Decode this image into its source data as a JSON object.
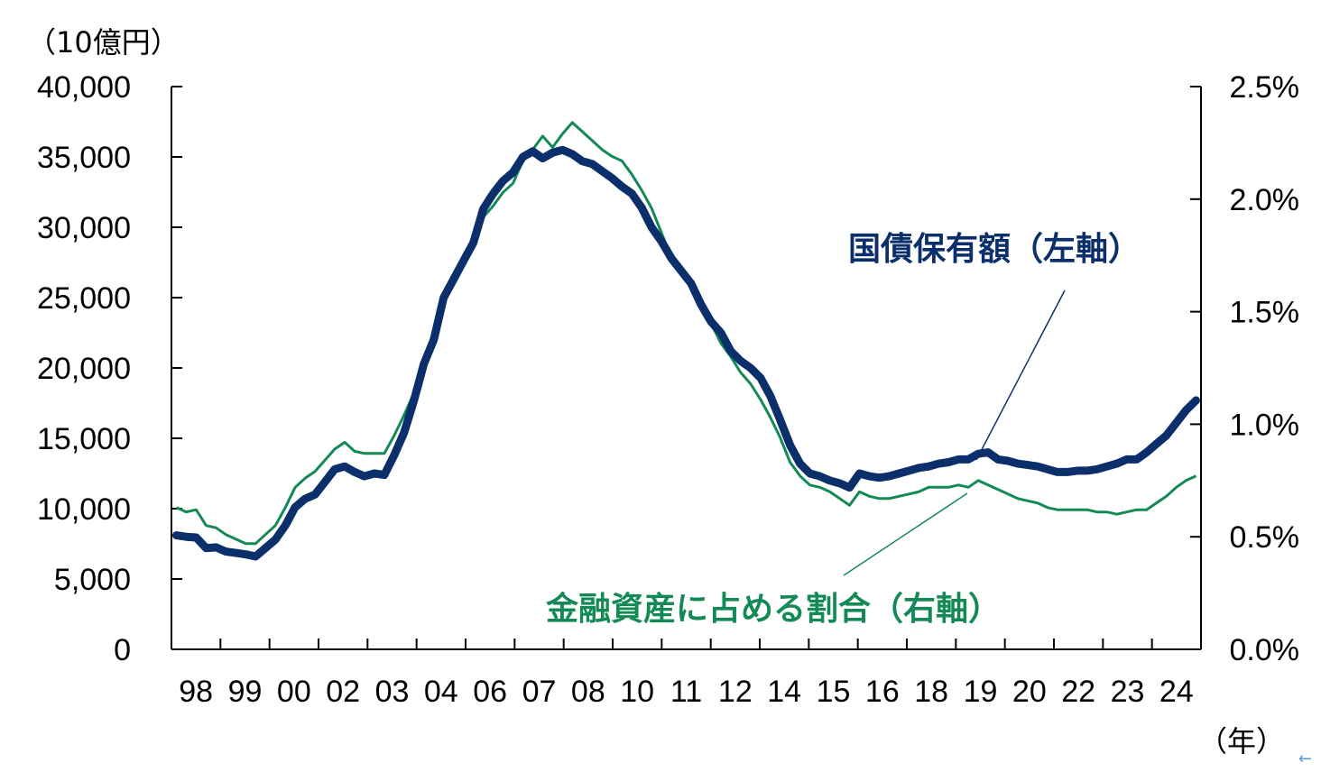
{
  "chart_data": {
    "type": "line",
    "left_axis": {
      "unit_label": "（10億円）",
      "ylim": [
        0,
        40000
      ],
      "ticks": [
        0,
        5000,
        10000,
        15000,
        20000,
        25000,
        30000,
        35000,
        40000
      ],
      "tick_labels": [
        "0",
        "5,000",
        "10,000",
        "15,000",
        "20,000",
        "25,000",
        "30,000",
        "35,000",
        "40,000"
      ]
    },
    "right_axis": {
      "ylim": [
        0,
        2.5
      ],
      "ticks": [
        0,
        0.5,
        1.0,
        1.5,
        2.0,
        2.5
      ],
      "tick_labels": [
        "0.0%",
        "0.5%",
        "1.0%",
        "1.5%",
        "2.0%",
        "2.5%"
      ]
    },
    "x_axis": {
      "unit_label": "（年）",
      "categories": [
        "98",
        "99",
        "00",
        "02",
        "03",
        "04",
        "06",
        "07",
        "08",
        "10",
        "11",
        "12",
        "14",
        "15",
        "16",
        "18",
        "19",
        "20",
        "22",
        "23",
        "24"
      ]
    },
    "grid": false,
    "series": [
      {
        "name": "国債保有額（左軸）",
        "axis": "left",
        "color": "#0b2f6b",
        "values": [
          8100,
          8000,
          7950,
          7200,
          7250,
          6950,
          6850,
          6750,
          6600,
          7200,
          7800,
          8800,
          10100,
          10700,
          11000,
          11900,
          12800,
          13000,
          12600,
          12300,
          12500,
          12400,
          13800,
          15400,
          17700,
          20300,
          22000,
          25000,
          26300,
          27600,
          28900,
          31300,
          32400,
          33300,
          33900,
          35000,
          35400,
          34900,
          35300,
          35500,
          35200,
          34700,
          34500,
          34000,
          33500,
          32900,
          32400,
          31400,
          30000,
          29000,
          27800,
          26900,
          26000,
          24500,
          23300,
          22500,
          21200,
          20500,
          20000,
          19300,
          18000,
          16300,
          14500,
          13200,
          12500,
          12300,
          12000,
          11800,
          11500,
          12500,
          12300,
          12200,
          12300,
          12500,
          12700,
          12900,
          13000,
          13200,
          13300,
          13500,
          13500,
          13900,
          14000,
          13500,
          13400,
          13200,
          13100,
          13000,
          12800,
          12600,
          12600,
          12700,
          12700,
          12800,
          13000,
          13200,
          13500,
          13500,
          14000,
          14600,
          15200,
          16100,
          17000,
          17700
        ]
      },
      {
        "name": "金融資産に占める割合（右軸）",
        "axis": "right",
        "color": "#138a55",
        "values": [
          0.63,
          0.61,
          0.62,
          0.55,
          0.54,
          0.51,
          0.49,
          0.47,
          0.47,
          0.51,
          0.55,
          0.63,
          0.72,
          0.76,
          0.79,
          0.84,
          0.89,
          0.92,
          0.88,
          0.87,
          0.87,
          0.87,
          0.95,
          1.04,
          1.14,
          1.23,
          1.38,
          1.54,
          1.63,
          1.71,
          1.79,
          1.92,
          1.97,
          2.03,
          2.07,
          2.17,
          2.22,
          2.28,
          2.23,
          2.29,
          2.34,
          2.3,
          2.26,
          2.22,
          2.19,
          2.17,
          2.11,
          2.04,
          1.96,
          1.85,
          1.74,
          1.7,
          1.62,
          1.53,
          1.45,
          1.36,
          1.3,
          1.23,
          1.18,
          1.11,
          1.03,
          0.94,
          0.83,
          0.77,
          0.73,
          0.72,
          0.7,
          0.67,
          0.64,
          0.7,
          0.68,
          0.67,
          0.67,
          0.68,
          0.69,
          0.7,
          0.72,
          0.72,
          0.72,
          0.73,
          0.72,
          0.75,
          0.73,
          0.71,
          0.69,
          0.67,
          0.66,
          0.65,
          0.63,
          0.62,
          0.62,
          0.62,
          0.62,
          0.61,
          0.61,
          0.6,
          0.61,
          0.62,
          0.62,
          0.65,
          0.68,
          0.72,
          0.75,
          0.77
        ]
      }
    ],
    "annotations": [
      {
        "target": "国債保有額（左軸）",
        "text": "国債保有額（左軸）"
      },
      {
        "target": "金融資産に占める割合（右軸）",
        "text": "金融資産に占める割合（右軸）"
      }
    ]
  }
}
